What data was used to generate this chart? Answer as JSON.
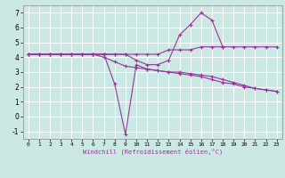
{
  "xlabel": "Windchill (Refroidissement éolien,°C)",
  "bg_color": "#cce8e4",
  "grid_color": "#ffffff",
  "line_color": "#993399",
  "xlim": [
    -0.5,
    23.5
  ],
  "ylim": [
    -1.5,
    7.5
  ],
  "yticks": [
    -1,
    0,
    1,
    2,
    3,
    4,
    5,
    6,
    7
  ],
  "xticks": [
    0,
    1,
    2,
    3,
    4,
    5,
    6,
    7,
    8,
    9,
    10,
    11,
    12,
    13,
    14,
    15,
    16,
    17,
    18,
    19,
    20,
    21,
    22,
    23
  ],
  "series": [
    {
      "x": [
        0,
        1,
        2,
        3,
        4,
        5,
        6,
        7,
        8,
        9,
        10,
        11,
        12,
        13,
        14,
        15,
        16,
        17,
        18,
        19,
        20,
        21,
        22,
        23
      ],
      "y": [
        4.2,
        4.2,
        4.2,
        4.2,
        4.2,
        4.2,
        4.2,
        4.2,
        4.2,
        4.2,
        4.2,
        4.2,
        4.2,
        4.5,
        4.5,
        4.5,
        4.7,
        4.7,
        4.7,
        4.7,
        4.7,
        4.7,
        4.7,
        4.7
      ]
    },
    {
      "x": [
        0,
        1,
        2,
        3,
        4,
        5,
        6,
        7,
        8,
        9,
        10,
        11,
        12,
        13,
        14,
        15,
        16,
        17,
        18,
        19,
        20,
        21,
        22,
        23
      ],
      "y": [
        4.2,
        4.2,
        4.2,
        4.2,
        4.2,
        4.2,
        4.2,
        4.2,
        2.2,
        -1.2,
        3.5,
        3.2,
        3.1,
        3.0,
        3.0,
        2.9,
        2.8,
        2.7,
        2.5,
        2.3,
        2.1,
        1.9,
        1.8,
        1.7
      ]
    },
    {
      "x": [
        0,
        1,
        2,
        3,
        4,
        5,
        6,
        7,
        8,
        9,
        10,
        11,
        12,
        13,
        14,
        15,
        16,
        17,
        18,
        19,
        20,
        21,
        22,
        23
      ],
      "y": [
        4.2,
        4.2,
        4.2,
        4.2,
        4.2,
        4.2,
        4.2,
        4.0,
        3.7,
        3.4,
        3.3,
        3.2,
        3.1,
        3.0,
        2.9,
        2.8,
        2.7,
        2.5,
        2.3,
        2.2,
        2.0,
        1.9,
        1.8,
        1.7
      ]
    },
    {
      "x": [
        0,
        1,
        2,
        3,
        4,
        5,
        6,
        7,
        8,
        9,
        10,
        11,
        12,
        13,
        14,
        15,
        16,
        17,
        18
      ],
      "y": [
        4.2,
        4.2,
        4.2,
        4.2,
        4.2,
        4.2,
        4.2,
        4.2,
        4.2,
        4.2,
        3.8,
        3.5,
        3.5,
        3.8,
        5.5,
        6.2,
        7.0,
        6.5,
        4.7
      ]
    }
  ]
}
